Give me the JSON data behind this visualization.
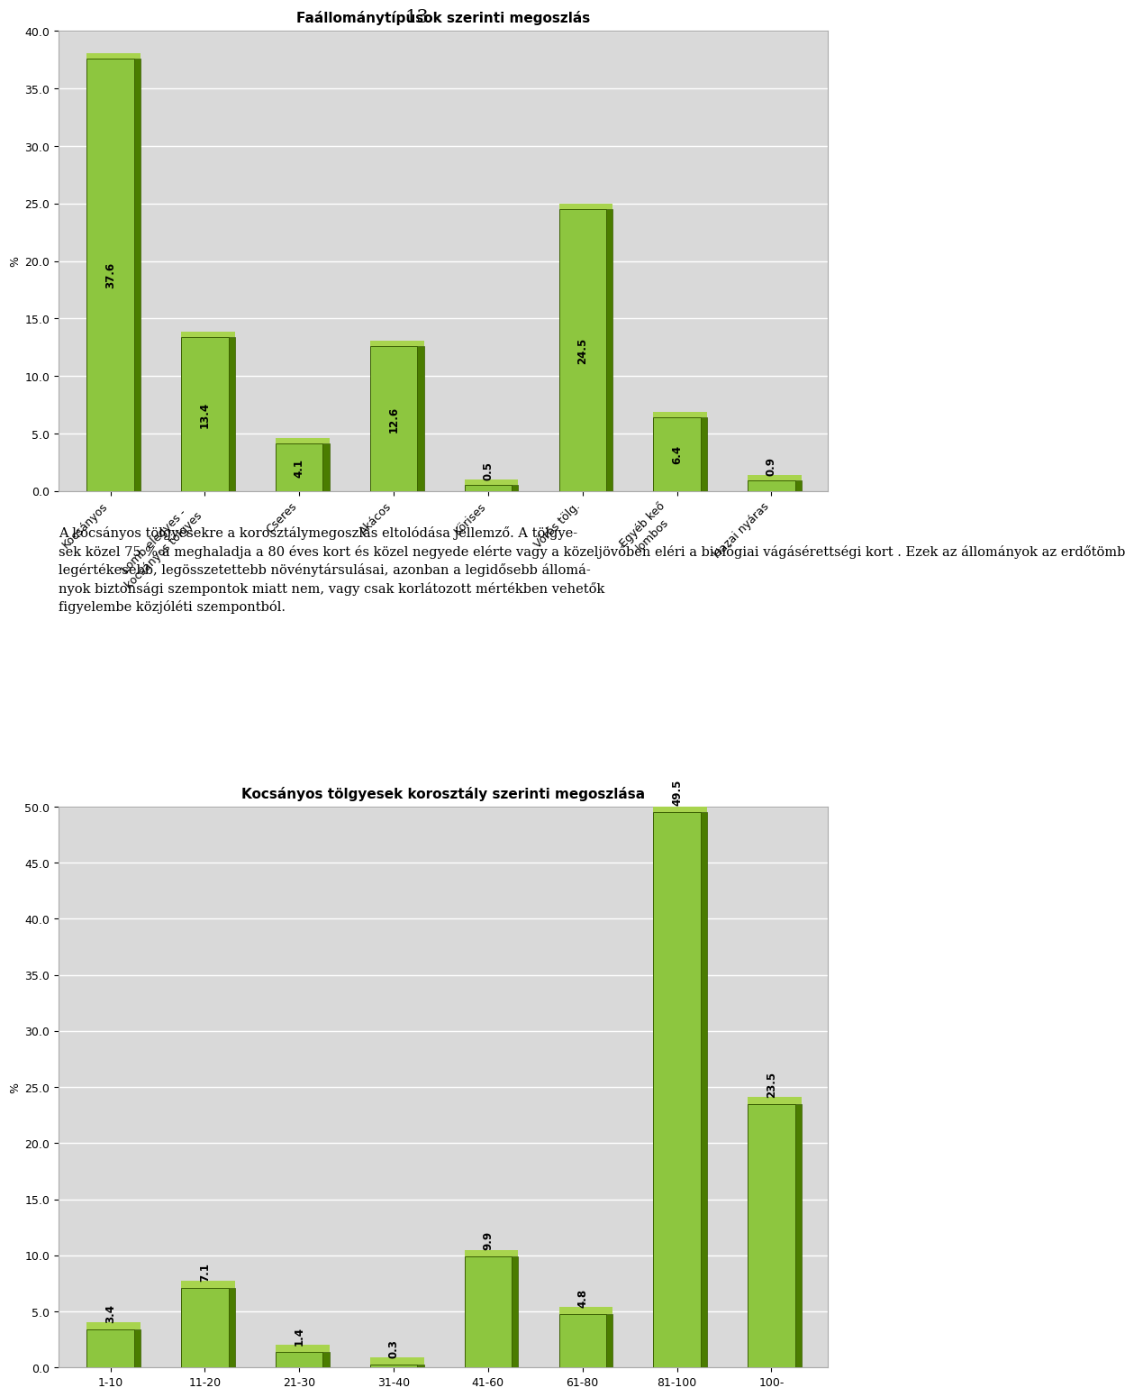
{
  "chart1": {
    "title": "Faállománytípusok szerinti megoszlás",
    "categories": [
      "Kocsányos",
      "Lomb elegyes -\nkocsányos tölgyes",
      "Cseres",
      "Akácos",
      "Körises",
      "Vörös tölg.",
      "Egyéb keő\nlombos",
      "Hazai nyáras"
    ],
    "values": [
      37.6,
      13.4,
      4.1,
      12.6,
      0.5,
      24.5,
      6.4,
      0.9
    ],
    "ylabel": "%",
    "ylim": [
      0,
      40
    ],
    "yticks": [
      0.0,
      5.0,
      10.0,
      15.0,
      20.0,
      25.0,
      30.0,
      35.0,
      40.0
    ]
  },
  "text_lines": [
    "A kocsányos tölgyesekre a korosztálymegoszlás eltolódása jellemző. A tölgye-",
    "sek közel 75 %-a meghaladja a 80 éves kort és közel negyede elérte vagy a közeljövőben eléri a biológiai vágásérettségi kort . Ezek az állományok az erdőtömb",
    "legértékesebb, legösszetettebb növénytársulásai, azonban a legidősebb állomá-",
    "nyok biztonsági szempontok miatt nem, vagy csak korlátozott mértékben vehetők",
    "figyelembe közjóléti szempontból."
  ],
  "chart2": {
    "title": "Kocsányos tölgyesek korosztály szerinti megoszlása",
    "categories": [
      "1-10",
      "11-20",
      "21-30",
      "31-40",
      "41-60",
      "61-80",
      "81-100",
      "100-"
    ],
    "values": [
      3.4,
      7.1,
      1.4,
      0.3,
      9.9,
      4.8,
      49.5,
      23.5
    ],
    "ylabel": "%",
    "ylim": [
      0,
      50
    ],
    "yticks": [
      0.0,
      5.0,
      10.0,
      15.0,
      20.0,
      25.0,
      30.0,
      35.0,
      40.0,
      45.0,
      50.0
    ]
  },
  "bar_color_light": "#8dc63f",
  "bar_color_dark": "#4a7c00",
  "bar_color_top": "#a8d44e",
  "background_color": "#ffffff",
  "chart_bg": "#d9d9d9",
  "page_number": "13",
  "title_fontsize": 11,
  "tick_fontsize": 9,
  "label_fontsize": 8.5
}
